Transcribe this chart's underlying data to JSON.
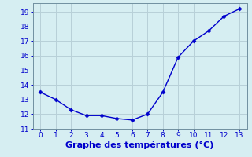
{
  "x": [
    0,
    1,
    2,
    3,
    4,
    5,
    6,
    7,
    8,
    9,
    10,
    11,
    12,
    13
  ],
  "y": [
    13.5,
    13.0,
    12.3,
    11.9,
    11.9,
    11.7,
    11.6,
    12.0,
    13.5,
    15.9,
    17.0,
    17.7,
    18.7,
    19.2
  ],
  "line_color": "#0000cc",
  "marker": "D",
  "marker_size": 2.5,
  "bg_color": "#d6eef2",
  "grid_color": "#b8d0d8",
  "xlabel": "Graphe des températures (°C)",
  "xlim": [
    -0.5,
    13.5
  ],
  "ylim": [
    11.0,
    19.6
  ],
  "yticks": [
    11,
    12,
    13,
    14,
    15,
    16,
    17,
    18,
    19
  ],
  "xticks": [
    0,
    1,
    2,
    3,
    4,
    5,
    6,
    7,
    8,
    9,
    10,
    11,
    12,
    13
  ],
  "tick_color": "#0000cc",
  "tick_fontsize": 6.5,
  "xlabel_fontsize": 8,
  "xlabel_color": "#0000cc",
  "xlabel_fontweight": "bold",
  "spine_color": "#7090a0",
  "linewidth": 1.0
}
